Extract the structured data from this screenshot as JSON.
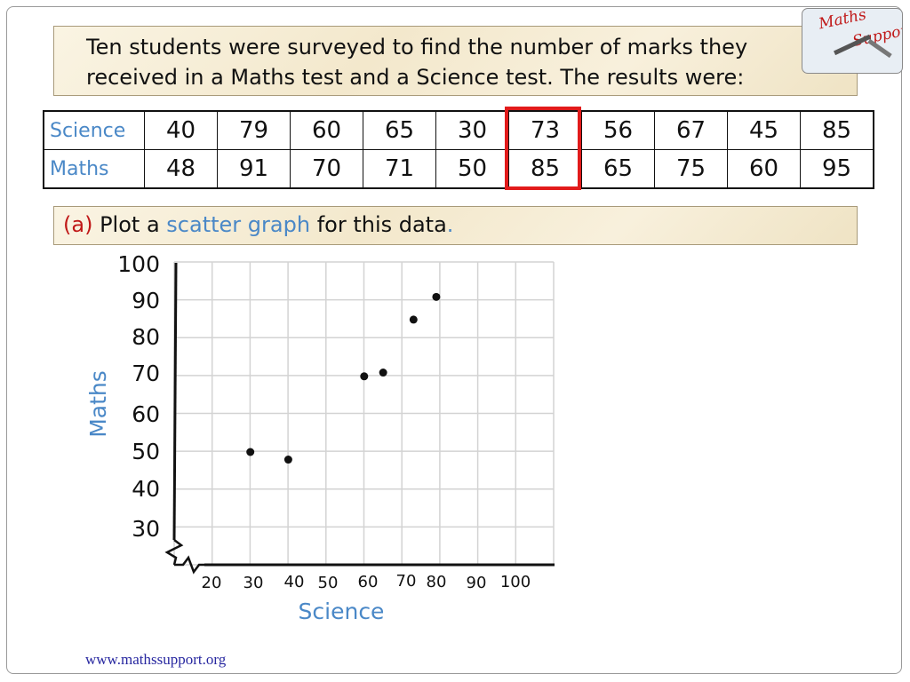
{
  "intro": {
    "line1": "Ten students were surveyed to find the number of marks they",
    "line2": "received in a Maths test and a Science test. The results were:"
  },
  "logo": {
    "word1": "Maths",
    "word2": "Support"
  },
  "table": {
    "rows": [
      {
        "label": "Science",
        "values": [
          "40",
          "79",
          "60",
          "65",
          "30",
          "73",
          "56",
          "67",
          "45",
          "85"
        ]
      },
      {
        "label": "Maths",
        "values": [
          "48",
          "91",
          "70",
          "71",
          "50",
          "85",
          "65",
          "75",
          "60",
          "95"
        ]
      }
    ],
    "highlight_color": "#e21b1b"
  },
  "question": {
    "label": "(a)",
    "text1": "Plot a",
    "keyword": "scatter graph",
    "text2": "for this data",
    "end": "."
  },
  "chart_data": {
    "type": "scatter",
    "xlabel": "Science",
    "ylabel": "Maths",
    "x_ticks": [
      "20",
      "30",
      "40",
      "50",
      "60",
      "70",
      "80",
      "90",
      "100"
    ],
    "y_ticks": [
      "100",
      "90",
      "80",
      "70",
      "60",
      "50",
      "40",
      "30"
    ],
    "xlim": [
      20,
      100
    ],
    "ylim": [
      30,
      100
    ],
    "axis_break": true,
    "grid": true,
    "point_color": "#111111",
    "points": [
      {
        "x": 30,
        "y": 50
      },
      {
        "x": 40,
        "y": 48
      },
      {
        "x": 60,
        "y": 70
      },
      {
        "x": 65,
        "y": 71
      },
      {
        "x": 73,
        "y": 85
      },
      {
        "x": 79,
        "y": 91
      }
    ]
  },
  "footer": {
    "url": "www.mathssupport.org"
  }
}
